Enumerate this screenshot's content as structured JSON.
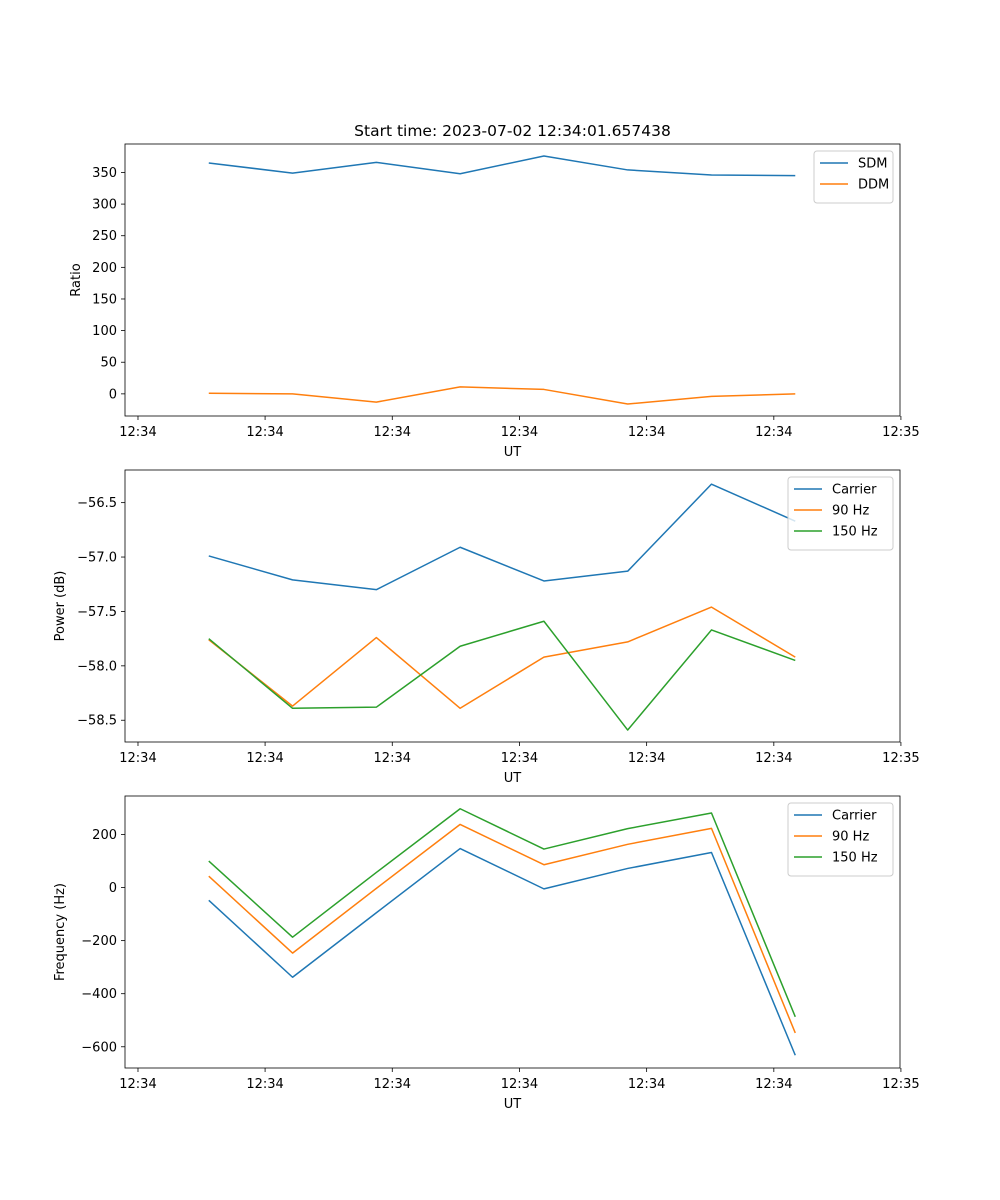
{
  "figure_title": "Start time: 2023-07-02 12:34:01.657438",
  "chart_data": [
    {
      "type": "line",
      "title": "Start time: 2023-07-02 12:34:01.657438",
      "xlabel": "UT",
      "ylabel": "Ratio",
      "x_index": [
        1,
        2,
        3,
        4,
        5,
        6,
        7,
        8
      ],
      "xlim": [
        0,
        9.25
      ],
      "x_tick_positions": [
        0.155,
        1.672,
        3.19,
        4.708,
        6.226,
        7.744,
        9.261
      ],
      "x_tick_labels": [
        "12:34",
        "12:34",
        "12:34",
        "12:34",
        "12:34",
        "12:34",
        "12:35"
      ],
      "ylim": [
        -35,
        395
      ],
      "yticks": [
        0,
        50,
        100,
        150,
        200,
        250,
        300,
        350
      ],
      "legend_position": "upper right",
      "series": [
        {
          "name": "SDM",
          "color": "#1f77b4",
          "values": [
            365,
            349,
            366,
            348,
            376,
            354,
            346,
            345
          ]
        },
        {
          "name": "DDM",
          "color": "#ff7f0e",
          "values": [
            1,
            0,
            -13,
            11,
            7,
            -16,
            -4,
            0
          ]
        }
      ]
    },
    {
      "type": "line",
      "title": "",
      "xlabel": "UT",
      "ylabel": "Power (dB)",
      "x_index": [
        1,
        2,
        3,
        4,
        5,
        6,
        7,
        8
      ],
      "xlim": [
        0,
        9.25
      ],
      "x_tick_positions": [
        0.155,
        1.672,
        3.19,
        4.708,
        6.226,
        7.744,
        9.261
      ],
      "x_tick_labels": [
        "12:34",
        "12:34",
        "12:34",
        "12:34",
        "12:34",
        "12:34",
        "12:35"
      ],
      "ylim": [
        -58.7,
        -56.2
      ],
      "yticks": [
        -58.5,
        -58.0,
        -57.5,
        -57.0,
        -56.5
      ],
      "ytick_labels": [
        "−58.5",
        "−58.0",
        "−57.5",
        "−57.0",
        "−56.5"
      ],
      "legend_position": "upper right",
      "series": [
        {
          "name": "Carrier",
          "color": "#1f77b4",
          "values": [
            -56.99,
            -57.21,
            -57.3,
            -56.91,
            -57.22,
            -57.13,
            -56.33,
            -56.67
          ]
        },
        {
          "name": "90 Hz",
          "color": "#ff7f0e",
          "values": [
            -57.76,
            -58.37,
            -57.74,
            -58.39,
            -57.92,
            -57.78,
            -57.46,
            -57.92
          ]
        },
        {
          "name": "150 Hz",
          "color": "#2ca02c",
          "values": [
            -57.75,
            -58.39,
            -58.38,
            -57.82,
            -57.59,
            -58.59,
            -57.67,
            -57.95
          ]
        }
      ]
    },
    {
      "type": "line",
      "title": "",
      "xlabel": "UT",
      "ylabel": "Frequency (Hz)",
      "x_index": [
        1,
        2,
        3,
        4,
        5,
        6,
        7,
        8
      ],
      "xlim": [
        0,
        9.25
      ],
      "x_tick_positions": [
        0.155,
        1.672,
        3.19,
        4.708,
        6.226,
        7.744,
        9.261
      ],
      "x_tick_labels": [
        "12:34",
        "12:34",
        "12:34",
        "12:34",
        "12:34",
        "12:34",
        "12:35"
      ],
      "ylim": [
        -680,
        345
      ],
      "yticks": [
        -600,
        -400,
        -200,
        0,
        200
      ],
      "ytick_labels": [
        "−600",
        "−400",
        "−200",
        "0",
        "200"
      ],
      "legend_position": "upper right",
      "series": [
        {
          "name": "Carrier",
          "color": "#1f77b4",
          "values": [
            -48,
            -338,
            -95,
            147,
            -5,
            72,
            132,
            -632
          ]
        },
        {
          "name": "90 Hz",
          "color": "#ff7f0e",
          "values": [
            43,
            -247,
            -3,
            238,
            86,
            163,
            223,
            -548
          ]
        },
        {
          "name": "150 Hz",
          "color": "#2ca02c",
          "values": [
            100,
            -187,
            57,
            297,
            145,
            222,
            281,
            -487
          ]
        }
      ]
    }
  ]
}
